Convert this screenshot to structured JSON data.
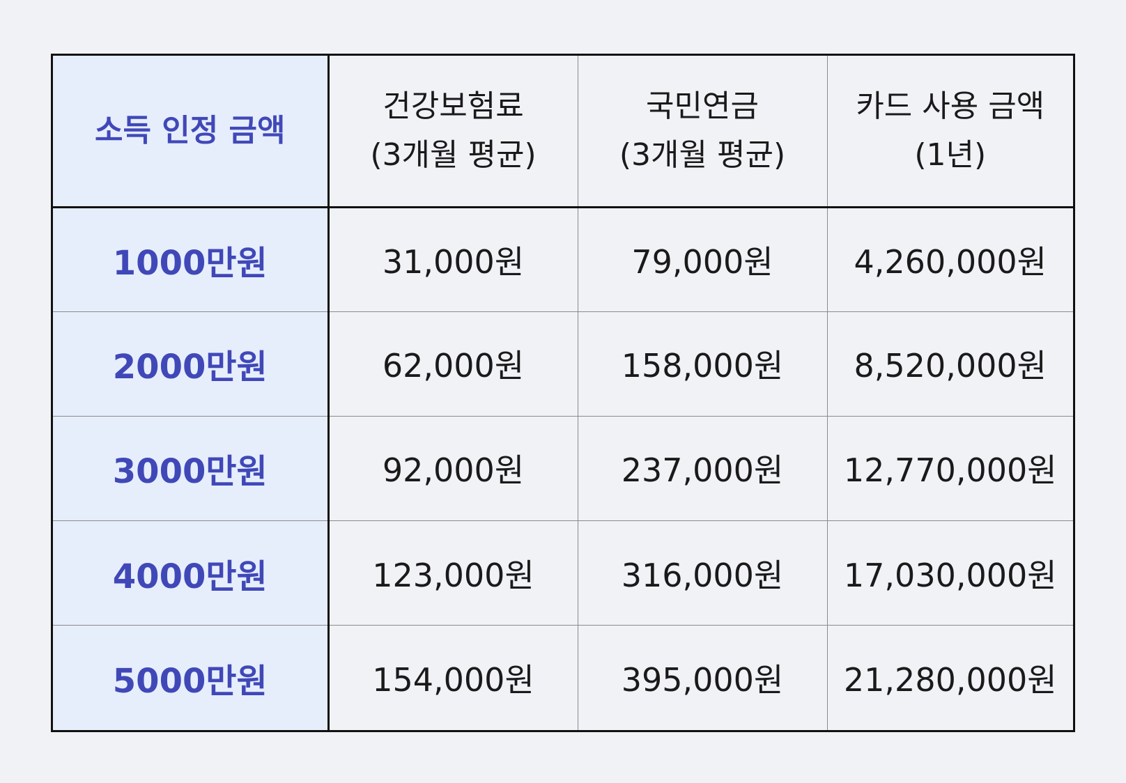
{
  "table": {
    "corner_label": "소득 인정 금액",
    "columns": [
      {
        "line1": "건강보험료",
        "line2": "(3개월 평균)"
      },
      {
        "line1": "국민연금",
        "line2": "(3개월 평균)"
      },
      {
        "line1": "카드 사용 금액",
        "line2": "(1년)"
      }
    ],
    "rows": [
      {
        "label": "1000만원",
        "values": [
          "31,000원",
          "79,000원",
          "4,260,000원"
        ]
      },
      {
        "label": "2000만원",
        "values": [
          "62,000원",
          "158,000원",
          "8,520,000원"
        ]
      },
      {
        "label": "3000만원",
        "values": [
          "92,000원",
          "237,000원",
          "12,770,000원"
        ]
      },
      {
        "label": "4000만원",
        "values": [
          "123,000원",
          "316,000원",
          "17,030,000원"
        ]
      },
      {
        "label": "5000만원",
        "values": [
          "154,000원",
          "395,000원",
          "21,280,000원"
        ]
      }
    ]
  },
  "colors": {
    "background": "#f0f2f6",
    "header_column_fill": "#e6eefc",
    "accent_text": "#4048b8",
    "body_text": "#1a1a1a",
    "outer_border": "#111111",
    "inner_border": "#8a8a8a"
  }
}
